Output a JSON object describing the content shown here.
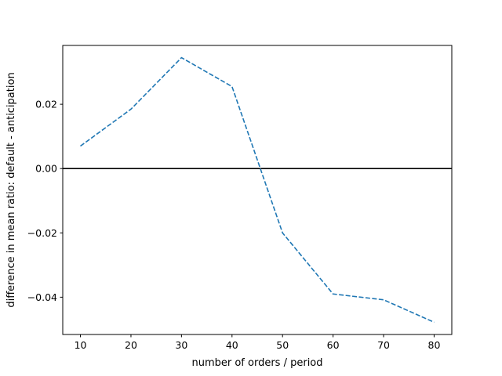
{
  "chart_data": {
    "type": "line",
    "title": "",
    "xlabel": "number of orders / period",
    "ylabel": "difference in mean ratio: default - anticipation",
    "x": [
      10,
      20,
      30,
      40,
      50,
      60,
      70,
      80
    ],
    "series": [
      {
        "values": [
          0.007,
          0.0185,
          0.0345,
          0.0255,
          -0.02,
          -0.039,
          -0.0408,
          -0.0478
        ],
        "color": "#1f77b4",
        "line_style": "dashed"
      }
    ],
    "reference_line": {
      "y": 0.0,
      "color": "#000000"
    },
    "xlim": [
      6.5,
      83.5
    ],
    "ylim": [
      -0.0516,
      0.0383
    ],
    "xticks": [
      10,
      20,
      30,
      40,
      50,
      60,
      70,
      80
    ],
    "xtick_labels": [
      "10",
      "20",
      "30",
      "40",
      "50",
      "60",
      "70",
      "80"
    ],
    "yticks": [
      -0.04,
      -0.02,
      0.0,
      0.02
    ],
    "ytick_labels": [
      "−0.04",
      "−0.02",
      "0.00",
      "0.02"
    ],
    "grid": false,
    "legend": "none"
  }
}
